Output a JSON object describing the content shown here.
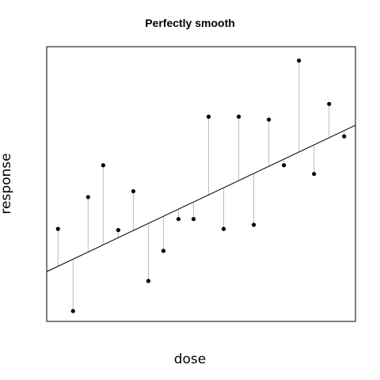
{
  "chart_data": {
    "type": "scatter",
    "title": "Perfectly smooth",
    "xlabel": "dose",
    "ylabel": "response",
    "xlim": [
      0.25,
      20.75
    ],
    "ylim": [
      -1.55,
      3.2
    ],
    "grid": false,
    "legend": "none",
    "points": [
      {
        "x": 1,
        "y": 0.05
      },
      {
        "x": 2,
        "y": -1.37
      },
      {
        "x": 3,
        "y": 0.6
      },
      {
        "x": 4,
        "y": 1.15
      },
      {
        "x": 5,
        "y": 0.03
      },
      {
        "x": 6,
        "y": 0.7
      },
      {
        "x": 7,
        "y": -0.85
      },
      {
        "x": 8,
        "y": -0.33
      },
      {
        "x": 9,
        "y": 0.22
      },
      {
        "x": 10,
        "y": 0.22
      },
      {
        "x": 11,
        "y": 1.99
      },
      {
        "x": 12,
        "y": 0.05
      },
      {
        "x": 13,
        "y": 1.99
      },
      {
        "x": 14,
        "y": 0.12
      },
      {
        "x": 15,
        "y": 1.94
      },
      {
        "x": 16,
        "y": 1.15
      },
      {
        "x": 17,
        "y": 2.96
      },
      {
        "x": 18,
        "y": 1.0
      },
      {
        "x": 19,
        "y": 2.21
      },
      {
        "x": 20,
        "y": 1.65
      }
    ],
    "fit_line": {
      "intercept": -0.72,
      "slope": 0.1235
    },
    "residual_segments": true,
    "colors": {
      "points": "#000000",
      "fit": "#000000",
      "residuals": "#bdbdbd",
      "frame": "#000000"
    }
  }
}
